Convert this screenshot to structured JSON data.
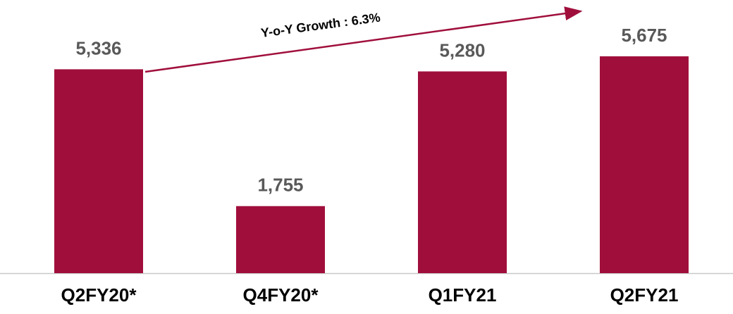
{
  "chart_data": {
    "type": "bar",
    "categories": [
      "Q2FY20*",
      "Q4FY20*",
      "Q1FY21",
      "Q2FY21"
    ],
    "values": [
      5336,
      1755,
      5280,
      5675
    ],
    "value_labels": [
      "5,336",
      "1,755",
      "5,280",
      "5,675"
    ],
    "color": "#a00f3c",
    "annotation": "Y-o-Y Growth : 6.3%"
  }
}
